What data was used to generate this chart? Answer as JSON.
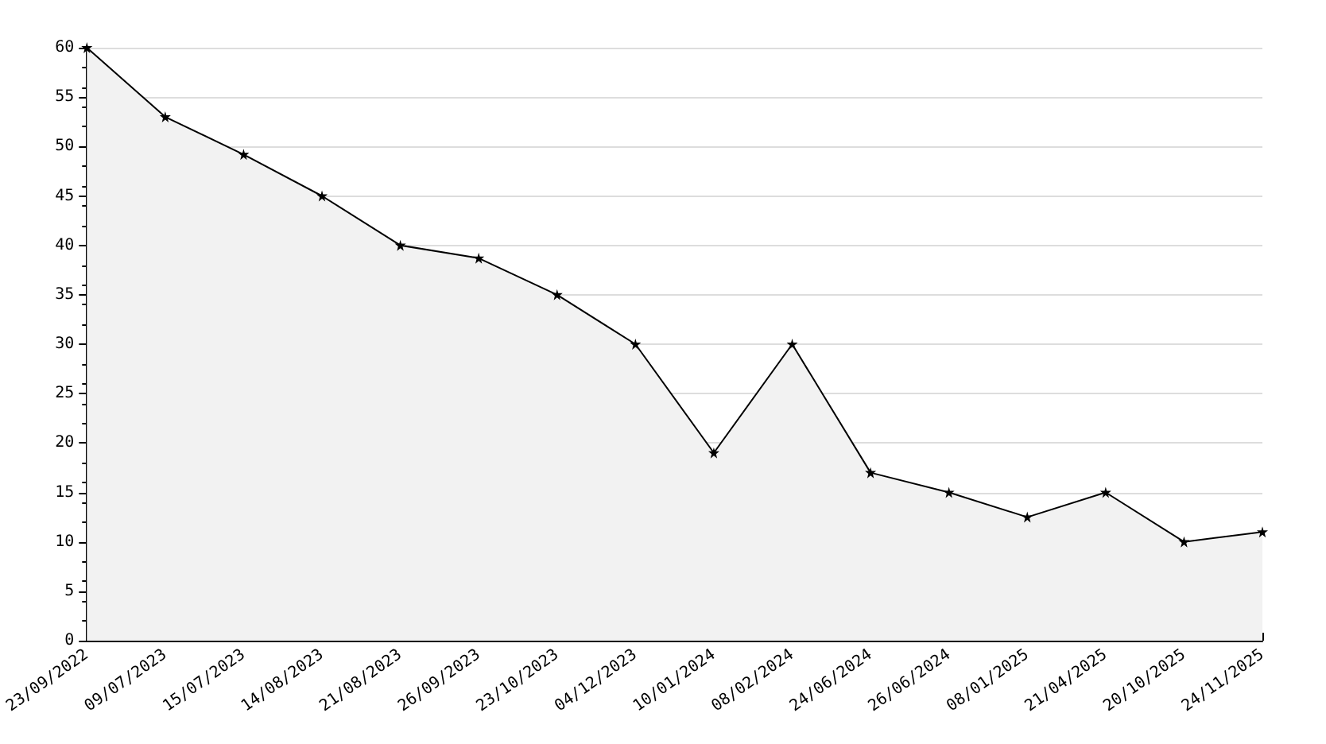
{
  "chart_data": {
    "type": "area",
    "categories": [
      "23/09/2022",
      "09/07/2023",
      "15/07/2023",
      "14/08/2023",
      "21/08/2023",
      "26/09/2023",
      "23/10/2023",
      "04/12/2023",
      "10/01/2024",
      "08/02/2024",
      "24/06/2024",
      "26/06/2024",
      "08/01/2025",
      "21/04/2025",
      "20/10/2025",
      "24/11/2025"
    ],
    "series": [
      {
        "color": "#000000",
        "values": [
          60,
          53,
          49.2,
          45,
          40,
          38.7,
          35,
          30,
          19,
          30,
          17,
          15,
          12.5,
          15,
          10,
          11
        ]
      }
    ],
    "ylim": [
      0,
      60
    ],
    "yticks": [
      0,
      5,
      10,
      15,
      20,
      25,
      30,
      35,
      40,
      45,
      50,
      55,
      60
    ],
    "grid": "y",
    "marker": "star",
    "line_style": "solid"
  }
}
